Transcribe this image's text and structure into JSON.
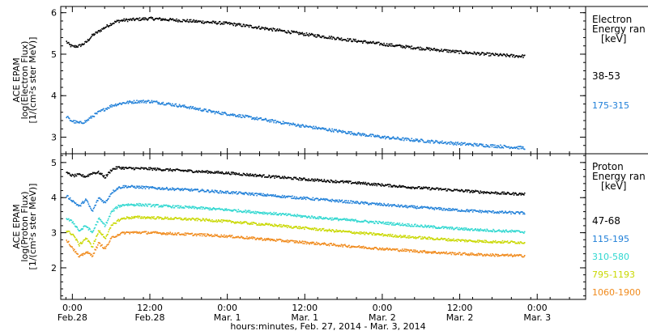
{
  "chart_data": [
    {
      "panel": "electron",
      "type": "scatter",
      "ylabel_lines": [
        "ACE EPAM",
        "log(Electron Flux)",
        "[1/(cm²s ster MeV)]"
      ],
      "ylim": [
        2.6,
        6.15
      ],
      "yticks": [
        3,
        4,
        5,
        6
      ],
      "legend": {
        "title_lines": [
          "Electron",
          "Energy ran",
          "[keV]"
        ]
      },
      "series": [
        {
          "name": "38-53",
          "color": "#000000",
          "points": [
            [
              -1,
              5.3
            ],
            [
              -0.5,
              5.22
            ],
            [
              0,
              5.18
            ],
            [
              1,
              5.2
            ],
            [
              2,
              5.28
            ],
            [
              3,
              5.45
            ],
            [
              4,
              5.55
            ],
            [
              5,
              5.65
            ],
            [
              6,
              5.74
            ],
            [
              7,
              5.8
            ],
            [
              8,
              5.82
            ],
            [
              10,
              5.84
            ],
            [
              12,
              5.86
            ],
            [
              14,
              5.84
            ],
            [
              16,
              5.82
            ],
            [
              18,
              5.8
            ],
            [
              20,
              5.78
            ],
            [
              22,
              5.76
            ],
            [
              24,
              5.74
            ],
            [
              28,
              5.66
            ],
            [
              32,
              5.57
            ],
            [
              36,
              5.48
            ],
            [
              40,
              5.4
            ],
            [
              44,
              5.32
            ],
            [
              48,
              5.24
            ],
            [
              52,
              5.17
            ],
            [
              56,
              5.11
            ],
            [
              60,
              5.05
            ],
            [
              64,
              5.0
            ],
            [
              68,
              4.96
            ],
            [
              70,
              4.95
            ]
          ]
        },
        {
          "name": "175-315",
          "color": "#1f7fd8",
          "points": [
            [
              -1,
              3.5
            ],
            [
              -0.5,
              3.42
            ],
            [
              0,
              3.38
            ],
            [
              1,
              3.34
            ],
            [
              2,
              3.38
            ],
            [
              3,
              3.5
            ],
            [
              4,
              3.6
            ],
            [
              5,
              3.68
            ],
            [
              6,
              3.76
            ],
            [
              7,
              3.8
            ],
            [
              8,
              3.83
            ],
            [
              10,
              3.86
            ],
            [
              12,
              3.86
            ],
            [
              14,
              3.82
            ],
            [
              16,
              3.77
            ],
            [
              18,
              3.72
            ],
            [
              20,
              3.66
            ],
            [
              22,
              3.6
            ],
            [
              24,
              3.56
            ],
            [
              28,
              3.46
            ],
            [
              32,
              3.36
            ],
            [
              36,
              3.26
            ],
            [
              40,
              3.17
            ],
            [
              44,
              3.08
            ],
            [
              48,
              3.0
            ],
            [
              52,
              2.94
            ],
            [
              56,
              2.89
            ],
            [
              60,
              2.84
            ],
            [
              64,
              2.8
            ],
            [
              68,
              2.76
            ],
            [
              70,
              2.74
            ]
          ]
        }
      ]
    },
    {
      "panel": "proton",
      "type": "scatter",
      "ylabel_lines": [
        "ACE EPAM",
        "log(Proton Flux)",
        "[1/(cm²s ster MeV)]"
      ],
      "ylim": [
        1.1,
        5.25
      ],
      "yticks": [
        2,
        3,
        4,
        5
      ],
      "legend": {
        "title_lines": [
          "Proton",
          "Energy ran",
          "[keV]"
        ]
      },
      "series": [
        {
          "name": "47-68",
          "color": "#000000",
          "points": [
            [
              -1,
              4.7
            ],
            [
              0,
              4.62
            ],
            [
              1,
              4.65
            ],
            [
              2,
              4.6
            ],
            [
              3,
              4.7
            ],
            [
              4,
              4.72
            ],
            [
              5,
              4.58
            ],
            [
              6,
              4.8
            ],
            [
              7,
              4.86
            ],
            [
              8,
              4.84
            ],
            [
              10,
              4.83
            ],
            [
              12,
              4.82
            ],
            [
              16,
              4.78
            ],
            [
              20,
              4.74
            ],
            [
              24,
              4.7
            ],
            [
              28,
              4.64
            ],
            [
              32,
              4.58
            ],
            [
              36,
              4.52
            ],
            [
              40,
              4.47
            ],
            [
              44,
              4.42
            ],
            [
              48,
              4.36
            ],
            [
              52,
              4.3
            ],
            [
              56,
              4.25
            ],
            [
              60,
              4.2
            ],
            [
              64,
              4.15
            ],
            [
              68,
              4.11
            ],
            [
              70,
              4.1
            ]
          ]
        },
        {
          "name": "115-195",
          "color": "#1f7fd8",
          "points": [
            [
              -1,
              4.05
            ],
            [
              0,
              3.9
            ],
            [
              1,
              3.75
            ],
            [
              2,
              3.95
            ],
            [
              3,
              3.6
            ],
            [
              4,
              4.0
            ],
            [
              5,
              3.85
            ],
            [
              6,
              4.15
            ],
            [
              7,
              4.28
            ],
            [
              8,
              4.32
            ],
            [
              10,
              4.3
            ],
            [
              12,
              4.28
            ],
            [
              16,
              4.24
            ],
            [
              20,
              4.2
            ],
            [
              24,
              4.15
            ],
            [
              28,
              4.1
            ],
            [
              32,
              4.04
            ],
            [
              36,
              3.98
            ],
            [
              40,
              3.92
            ],
            [
              44,
              3.86
            ],
            [
              48,
              3.8
            ],
            [
              52,
              3.74
            ],
            [
              56,
              3.69
            ],
            [
              60,
              3.64
            ],
            [
              64,
              3.6
            ],
            [
              68,
              3.57
            ],
            [
              70,
              3.56
            ]
          ]
        },
        {
          "name": "310-580",
          "color": "#2fd7d0",
          "points": [
            [
              -1,
              3.4
            ],
            [
              0,
              3.3
            ],
            [
              1,
              3.05
            ],
            [
              2,
              3.2
            ],
            [
              3,
              3.0
            ],
            [
              4,
              3.4
            ],
            [
              5,
              3.2
            ],
            [
              6,
              3.6
            ],
            [
              7,
              3.75
            ],
            [
              8,
              3.8
            ],
            [
              10,
              3.8
            ],
            [
              12,
              3.78
            ],
            [
              16,
              3.74
            ],
            [
              20,
              3.7
            ],
            [
              24,
              3.65
            ],
            [
              28,
              3.59
            ],
            [
              32,
              3.53
            ],
            [
              36,
              3.46
            ],
            [
              40,
              3.4
            ],
            [
              44,
              3.34
            ],
            [
              48,
              3.28
            ],
            [
              52,
              3.22
            ],
            [
              56,
              3.16
            ],
            [
              60,
              3.11
            ],
            [
              64,
              3.07
            ],
            [
              68,
              3.04
            ],
            [
              70,
              3.02
            ]
          ]
        },
        {
          "name": "795-1193",
          "color": "#c9d800",
          "points": [
            [
              -1,
              3.05
            ],
            [
              0,
              2.95
            ],
            [
              1,
              2.65
            ],
            [
              2,
              2.85
            ],
            [
              3,
              2.6
            ],
            [
              4,
              3.05
            ],
            [
              5,
              2.85
            ],
            [
              6,
              3.2
            ],
            [
              7,
              3.35
            ],
            [
              8,
              3.42
            ],
            [
              10,
              3.44
            ],
            [
              12,
              3.43
            ],
            [
              16,
              3.4
            ],
            [
              20,
              3.37
            ],
            [
              24,
              3.32
            ],
            [
              28,
              3.26
            ],
            [
              32,
              3.2
            ],
            [
              36,
              3.13
            ],
            [
              40,
              3.06
            ],
            [
              44,
              3.0
            ],
            [
              48,
              2.94
            ],
            [
              52,
              2.88
            ],
            [
              56,
              2.83
            ],
            [
              60,
              2.78
            ],
            [
              64,
              2.75
            ],
            [
              68,
              2.73
            ],
            [
              70,
              2.72
            ]
          ]
        },
        {
          "name": "1060-1900",
          "color": "#f08a1c",
          "points": [
            [
              -1,
              2.8
            ],
            [
              0,
              2.55
            ],
            [
              1,
              2.3
            ],
            [
              2,
              2.45
            ],
            [
              3,
              2.35
            ],
            [
              4,
              2.7
            ],
            [
              5,
              2.55
            ],
            [
              6,
              2.85
            ],
            [
              7,
              2.95
            ],
            [
              8,
              3.0
            ],
            [
              10,
              3.01
            ],
            [
              12,
              3.0
            ],
            [
              16,
              2.97
            ],
            [
              20,
              2.94
            ],
            [
              24,
              2.9
            ],
            [
              28,
              2.84
            ],
            [
              32,
              2.78
            ],
            [
              36,
              2.72
            ],
            [
              40,
              2.66
            ],
            [
              44,
              2.6
            ],
            [
              48,
              2.54
            ],
            [
              52,
              2.49
            ],
            [
              56,
              2.44
            ],
            [
              60,
              2.4
            ],
            [
              64,
              2.37
            ],
            [
              68,
              2.35
            ],
            [
              70,
              2.34
            ]
          ]
        }
      ]
    }
  ],
  "x_axis": {
    "xlim": [
      -1.8,
      79.5
    ],
    "ticks": [
      {
        "x": 0,
        "time": "0:00",
        "date": "Feb.28"
      },
      {
        "x": 12,
        "time": "12:00",
        "date": "Feb.28"
      },
      {
        "x": 24,
        "time": "0:00",
        "date": "Mar. 1"
      },
      {
        "x": 36,
        "time": "12:00",
        "date": "Mar. 1"
      },
      {
        "x": 48,
        "time": "0:00",
        "date": "Mar. 2"
      },
      {
        "x": 60,
        "time": "12:00",
        "date": "Mar. 2"
      },
      {
        "x": 72,
        "time": "0:00",
        "date": "Mar. 3"
      }
    ],
    "minor_step": 3,
    "title": "hours:minutes, Feb. 27, 2014 - Mar.  3, 2014"
  }
}
